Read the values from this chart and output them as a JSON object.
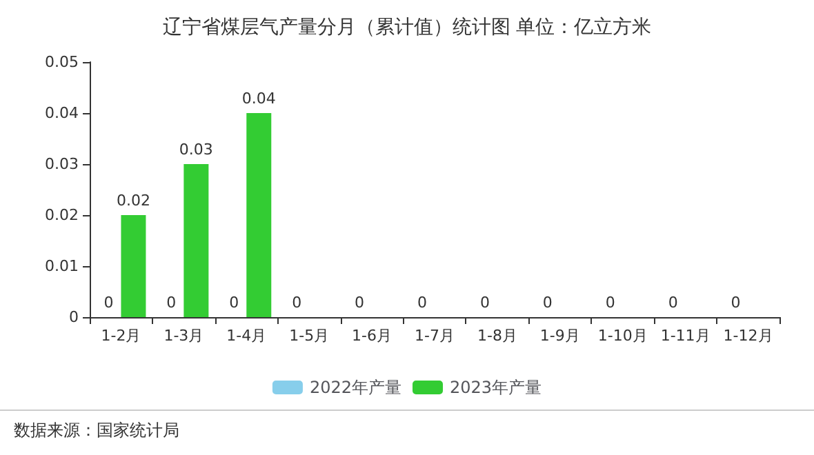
{
  "chart_data": {
    "type": "bar",
    "title": "辽宁省煤层气产量分月（累计值）统计图 单位：亿立方米",
    "categories": [
      "1-2月",
      "1-3月",
      "1-4月",
      "1-5月",
      "1-6月",
      "1-7月",
      "1-8月",
      "1-9月",
      "1-10月",
      "1-11月",
      "1-12月"
    ],
    "series": [
      {
        "name": "2022年产量",
        "color": "#87ceeb",
        "values": [
          0,
          0,
          0,
          0,
          0,
          0,
          0,
          0,
          0,
          0,
          0
        ]
      },
      {
        "name": "2023年产量",
        "color": "#33cc33",
        "values": [
          0.02,
          0.03,
          0.04,
          null,
          null,
          null,
          null,
          null,
          null,
          null,
          null
        ]
      }
    ],
    "ylim": [
      0,
      0.05
    ],
    "yticks": [
      0,
      0.01,
      0.02,
      0.03,
      0.04,
      0.05
    ],
    "grid": false,
    "legend": "bottom",
    "data_labels": true,
    "annotations": [
      "数据来源：国家统计局"
    ]
  }
}
